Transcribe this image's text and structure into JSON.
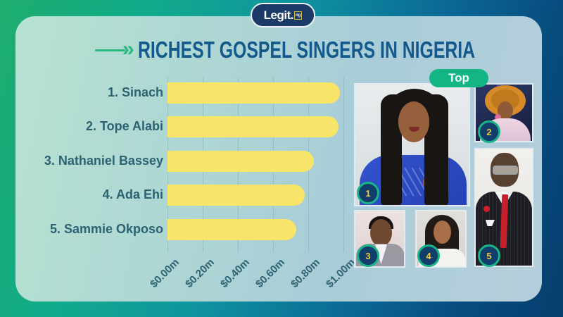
{
  "brand": {
    "logo_text": "Legit.",
    "logo_suffix": "ng"
  },
  "header": {
    "title": "RICHEST GOSPEL SINGERS IN NIGERIA",
    "arrow_glyph": "»"
  },
  "chart_data": {
    "type": "bar",
    "orientation": "horizontal",
    "title": "RICHEST GOSPEL SINGERS IN NIGERIA",
    "categories": [
      "1. Sinach",
      "2. Tope Alabi",
      "3. Nathaniel Bassey",
      "4. Ada Ehi",
      "5. Sammie Okposo"
    ],
    "values": [
      0.98,
      0.97,
      0.83,
      0.78,
      0.73
    ],
    "unit": "$ millions",
    "xlim": [
      0,
      1.0
    ],
    "tick_step": 0.2,
    "tick_labels": [
      "$0.00m",
      "$0.20m",
      "$0.40m",
      "$0.60m",
      "$0.80m",
      "$1.00m"
    ],
    "bar_color": "#f8e469",
    "grid": true,
    "legend": false
  },
  "right_panel": {
    "badge_label": "Top",
    "photos": [
      {
        "badge": "1",
        "person": "Sinach"
      },
      {
        "badge": "2",
        "person": "Tope Alabi"
      },
      {
        "badge": "3",
        "person": "Nathaniel Bassey"
      },
      {
        "badge": "4",
        "person": "Ada Ehi"
      },
      {
        "badge": "5",
        "person": "Sammie Okposo"
      }
    ]
  },
  "colors": {
    "accent_green": "#12b583",
    "title_blue": "#14598c",
    "bar_yellow": "#f8e469",
    "label_teal": "#2c6271",
    "badge_navy": "#113e6a",
    "badge_number_yellow": "#f2c83d"
  }
}
